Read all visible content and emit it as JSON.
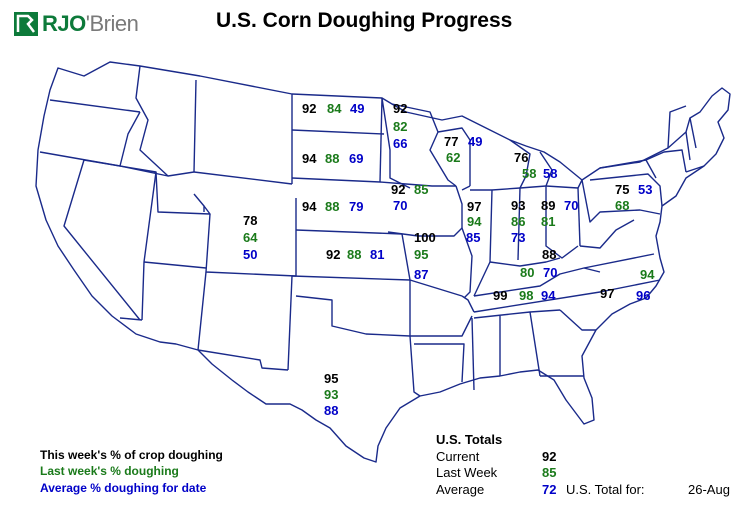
{
  "title": "U.S. Corn Doughing Progress",
  "logo": {
    "text_prefix": "RJO",
    "text_suffix": "'Brien"
  },
  "colors": {
    "current": "#000000",
    "last_week": "#1a7a1a",
    "average": "#0000c8",
    "logo_green": "#0d7a3a"
  },
  "states": [
    {
      "state": "ND",
      "current": "92",
      "last_week": "84",
      "average": "49"
    },
    {
      "state": "MN",
      "current": "92",
      "last_week": "82",
      "average": "66"
    },
    {
      "state": "WI",
      "current": "77",
      "last_week": "62",
      "average": "49"
    },
    {
      "state": "MI",
      "current": "76",
      "last_week": "58",
      "average": "58"
    },
    {
      "state": "SD",
      "current": "94",
      "last_week": "88",
      "average": "69"
    },
    {
      "state": "NE",
      "current": "94",
      "last_week": "88",
      "average": "79"
    },
    {
      "state": "IA",
      "current": "92",
      "last_week": "85",
      "average": "70"
    },
    {
      "state": "IL",
      "current": "97",
      "last_week": "94",
      "average": "85"
    },
    {
      "state": "IN",
      "current": "93",
      "last_week": "86",
      "average": "73"
    },
    {
      "state": "OH",
      "current": "89",
      "last_week": "81",
      "average": "70"
    },
    {
      "state": "PA",
      "current": "75",
      "last_week": "68",
      "average": "53"
    },
    {
      "state": "CO",
      "current": "78",
      "last_week": "64",
      "average": "50"
    },
    {
      "state": "KS",
      "current": "92",
      "last_week": "88",
      "average": "81"
    },
    {
      "state": "MO",
      "current": "100",
      "last_week": "95",
      "average": "87"
    },
    {
      "state": "KY",
      "current": "88",
      "last_week": "80",
      "average": "70"
    },
    {
      "state": "TN",
      "current": "99",
      "last_week": "98",
      "average": "94"
    },
    {
      "state": "NC",
      "current": "97",
      "last_week": "94",
      "average": "96"
    },
    {
      "state": "TX",
      "current": "95",
      "last_week": "93",
      "average": "88"
    }
  ],
  "legend": {
    "current": "This week's % of crop doughing",
    "last_week": "Last week's % doughing",
    "average": "Average % doughing for date"
  },
  "totals": {
    "heading": "U.S. Totals",
    "current_label": "Current",
    "current_value": "92",
    "last_week_label": "Last Week",
    "last_week_value": "85",
    "average_label": "Average",
    "average_value": "72",
    "date_label": "U.S. Total for:",
    "date": "26-Aug"
  }
}
